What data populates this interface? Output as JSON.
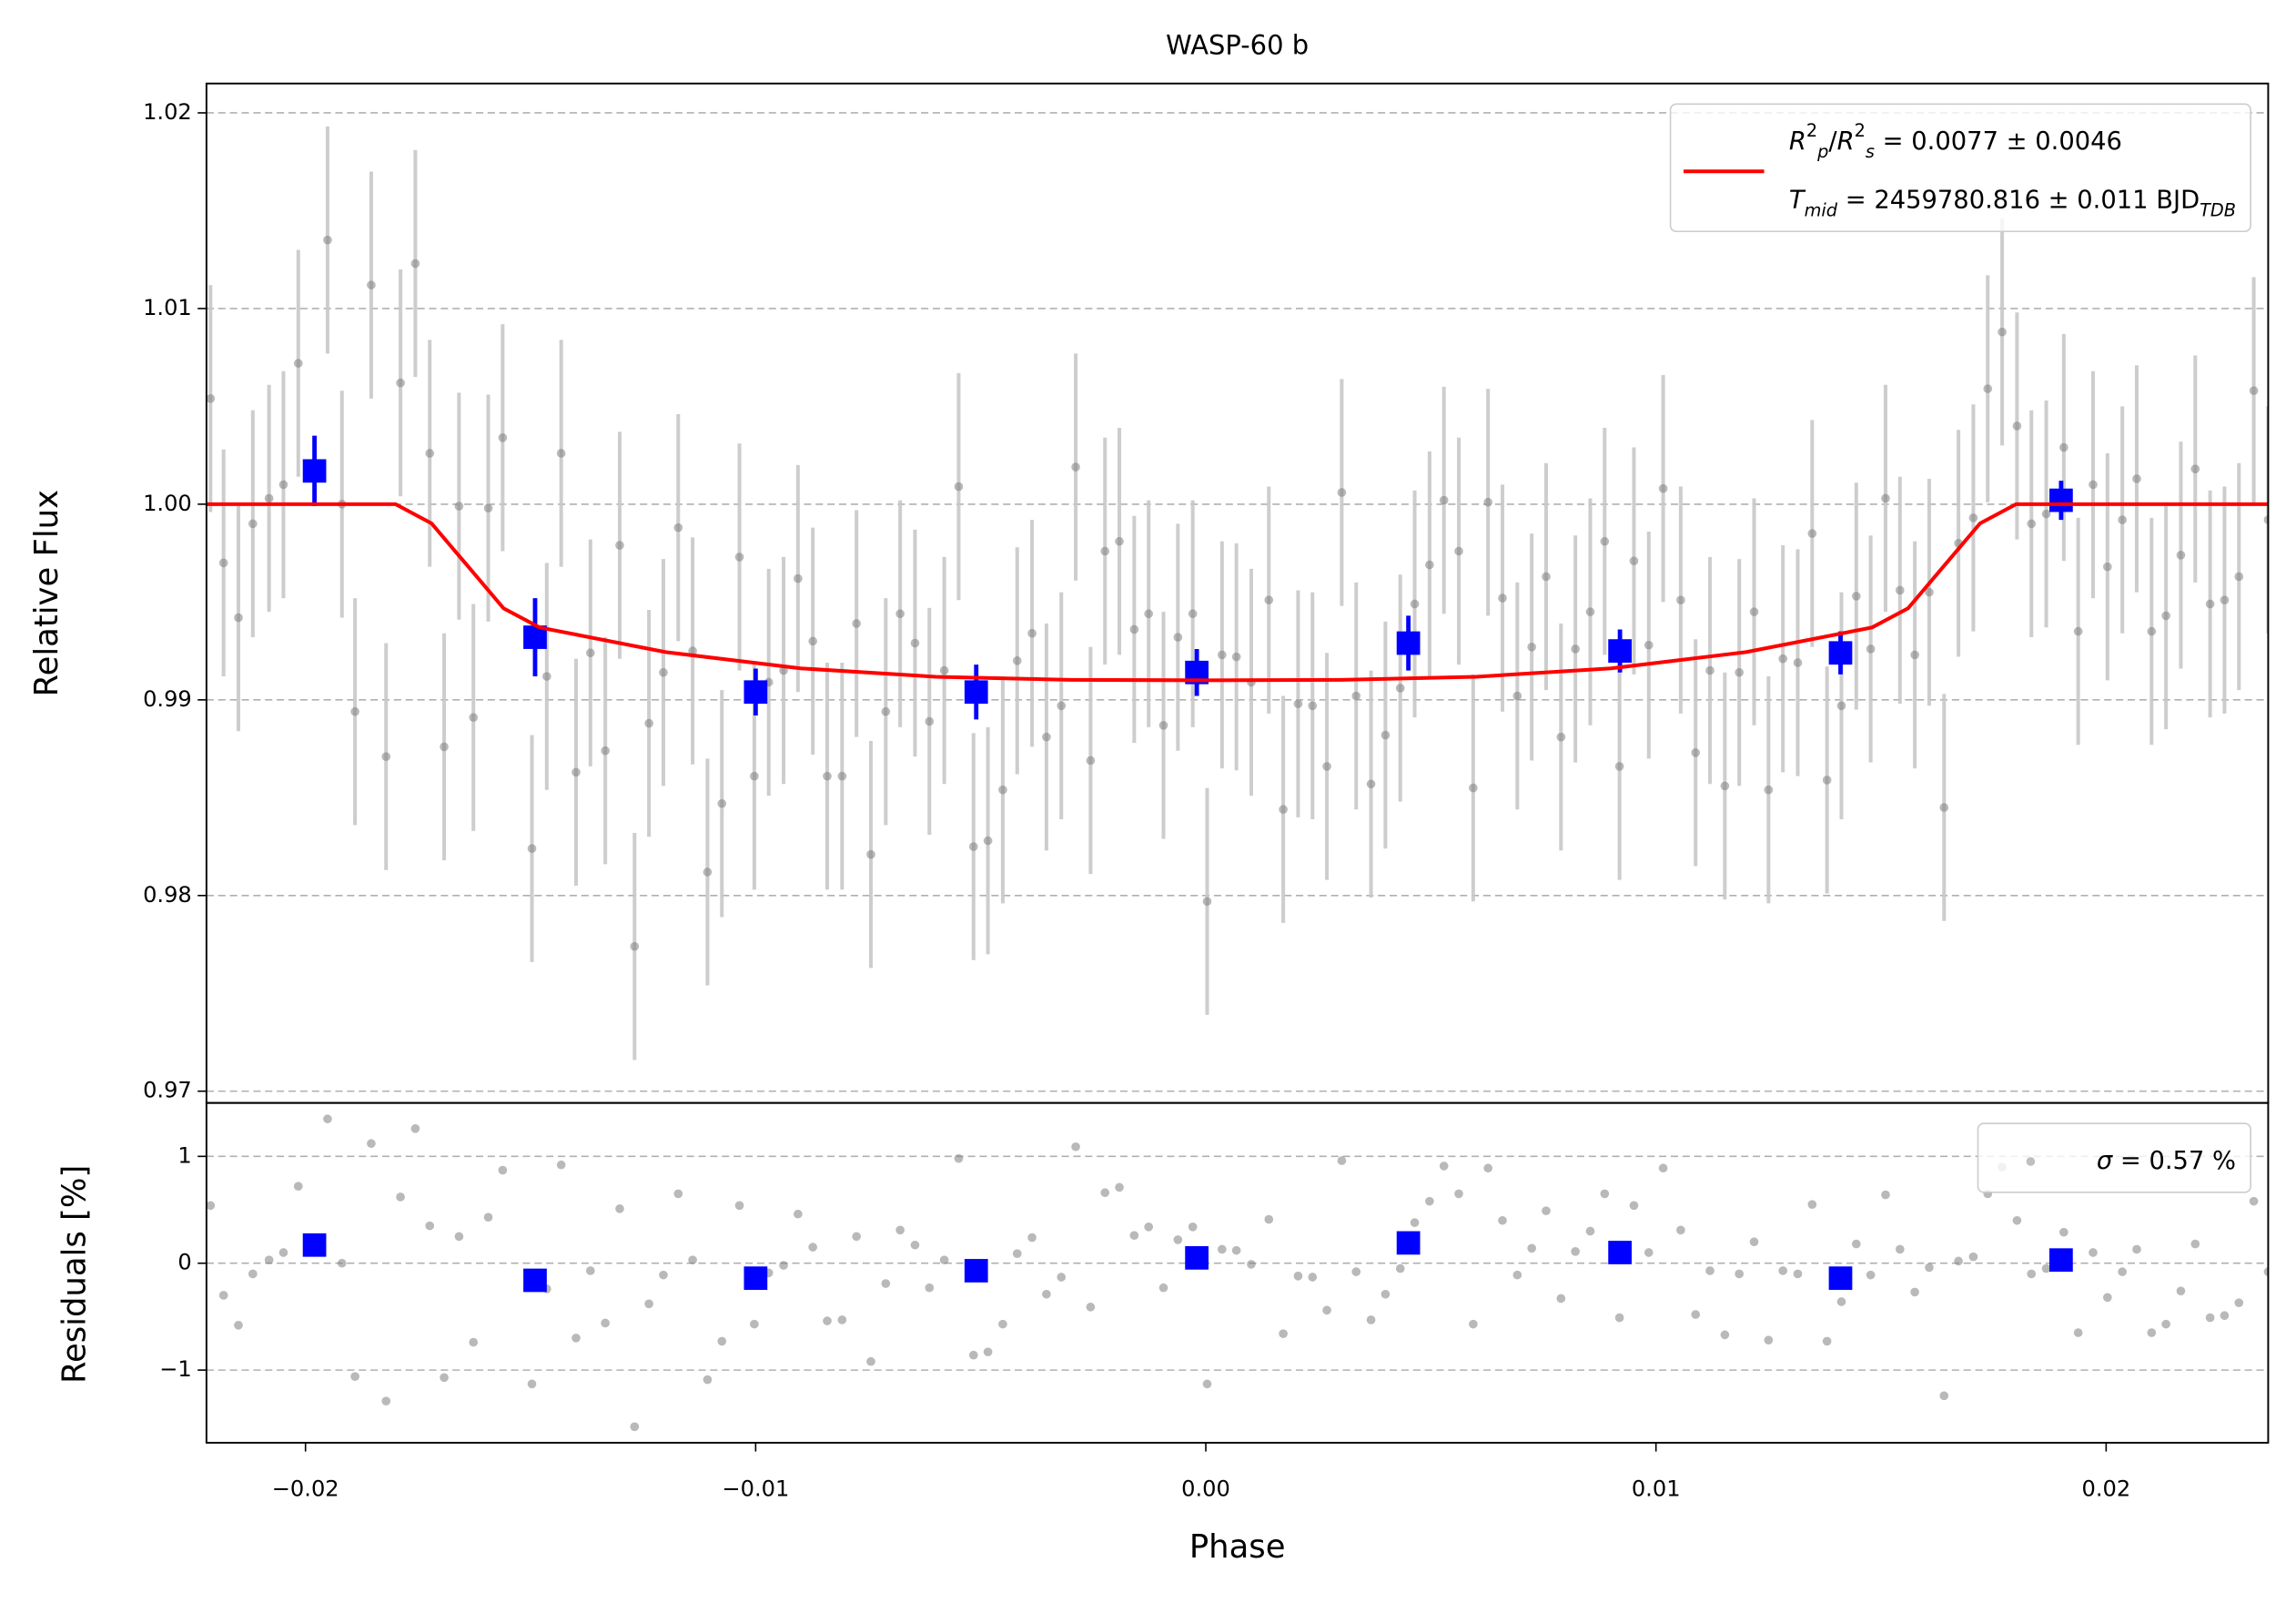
{
  "chart_data": [
    {
      "type": "scatter",
      "title": "WASP-60 b",
      "ylabel": "Relative Flux",
      "xlim": [
        -0.0222,
        0.0236
      ],
      "ylim": [
        0.9694,
        1.0215
      ],
      "yticks": [
        0.97,
        0.98,
        0.99,
        {
          "value": 1.0,
          "label": "1.00"
        },
        1.01,
        1.02
      ],
      "grid": true,
      "legend": "upper right",
      "series": [
        {
          "type": "errorbar",
          "marker": "circle",
          "color": "#808080",
          "error_color": "#c8c8c8",
          "error": 0.0058,
          "x": [
            -0.02211,
            -0.02182,
            -0.02149,
            -0.02117,
            -0.02081,
            -0.02049,
            -0.02016,
            -0.01951,
            -0.01919,
            -0.0189,
            -0.01854,
            -0.01821,
            -0.01789,
            -0.01756,
            -0.01724,
            -0.01692,
            -0.01659,
            -0.01627,
            -0.01594,
            -0.01562,
            -0.01497,
            -0.01464,
            -0.01432,
            -0.01399,
            -0.01367,
            -0.01334,
            -0.01302,
            -0.01269,
            -0.01237,
            -0.01205,
            -0.01172,
            -0.0114,
            -0.01107,
            -0.01075,
            -0.01036,
            -0.01003,
            -0.00971,
            -0.00938,
            -0.00906,
            -0.00873,
            -0.00841,
            -0.00808,
            -0.00776,
            -0.00744,
            -0.00711,
            -0.00679,
            -0.00646,
            -0.00614,
            -0.00581,
            -0.00549,
            -0.00516,
            -0.00484,
            -0.00451,
            -0.00419,
            -0.00386,
            -0.00354,
            -0.00321,
            -0.00289,
            -0.00256,
            -0.00224,
            -0.00192,
            -0.00159,
            -0.00127,
            -0.00094,
            -0.00062,
            -0.00029,
            3e-05,
            0.00036,
            0.00068,
            0.00101,
            0.0014,
            0.00172,
            0.00205,
            0.00237,
            0.00269,
            0.00302,
            0.00334,
            0.00367,
            0.00399,
            0.00432,
            0.00464,
            0.00497,
            0.00529,
            0.00562,
            0.00594,
            0.00627,
            0.00659,
            0.00692,
            0.00724,
            0.00756,
            0.00789,
            0.00821,
            0.00854,
            0.00886,
            0.00919,
            0.00951,
            0.00984,
            0.01016,
            0.01055,
            0.01088,
            0.0112,
            0.01153,
            0.01185,
            0.01218,
            0.0125,
            0.01282,
            0.01315,
            0.01347,
            0.0138,
            0.01412,
            0.01445,
            0.01477,
            0.0151,
            0.01542,
            0.01575,
            0.01607,
            0.0164,
            0.01672,
            0.01705,
            0.01737,
            0.01769,
            0.01802,
            0.01834,
            0.01867,
            0.01906,
            0.01938,
            0.01971,
            0.02003,
            0.02036,
            0.02068,
            0.02101,
            0.02133,
            0.02166,
            0.02198,
            0.02231,
            0.02263,
            0.02295,
            0.02328,
            0.0236
          ],
          "values": [
            1.0054,
            0.997,
            0.9942,
            0.999,
            1.0003,
            1.001,
            1.0072,
            1.0135,
            1.0,
            0.9894,
            1.0112,
            0.9871,
            1.0062,
            1.0123,
            1.0026,
            0.9876,
            0.9999,
            0.9891,
            0.9998,
            1.0034,
            0.9824,
            0.9912,
            1.0026,
            0.9863,
            0.9924,
            0.9874,
            0.9979,
            0.9774,
            0.9888,
            0.9914,
            0.9988,
            0.9925,
            0.9812,
            0.9847,
            0.9973,
            0.9861,
            0.9909,
            0.9915,
            0.9962,
            0.993,
            0.9861,
            0.9861,
            0.9939,
            0.9821,
            0.9894,
            0.9944,
            0.9929,
            0.9889,
            0.9915,
            1.0009,
            0.9825,
            0.9828,
            0.9854,
            0.992,
            0.9934,
            0.9881,
            0.9897,
            1.0019,
            0.9869,
            0.9976,
            0.9981,
            0.9936,
            0.9944,
            0.9887,
            0.9932,
            0.9944,
            0.9797,
            0.9923,
            0.9922,
            0.9909,
            0.9951,
            0.9844,
            0.9898,
            0.9897,
            0.9866,
            1.0006,
            0.9902,
            0.9857,
            0.9882,
            0.9906,
            0.9949,
            0.9969,
            1.0002,
            0.9976,
            0.9855,
            1.0001,
            0.9952,
            0.9902,
            0.9927,
            0.9963,
            0.9881,
            0.9926,
            0.9945,
            0.9981,
            0.9866,
            0.9971,
            0.9928,
            1.0008,
            0.9951,
            0.9873,
            0.9915,
            0.9856,
            0.9914,
            0.9945,
            0.9854,
            0.9921,
            0.9919,
            0.9985,
            0.9859,
            0.9897,
            0.9953,
            0.9926,
            1.0003,
            0.9956,
            0.9923,
            0.9955,
            0.9845,
            0.998,
            0.9993,
            1.0059,
            1.0088,
            1.004,
            0.999,
            0.9995,
            1.0029,
            0.9935,
            1.001,
            0.9968,
            0.9992,
            1.0013,
            0.9935,
            0.9943,
            0.9974,
            1.0018,
            0.9949,
            0.9951,
            0.9963,
            1.0058,
            0.9992
          ]
        },
        {
          "type": "errorbar",
          "marker": "square",
          "color": "#0000ff",
          "error_color": "#0000ff",
          "x": [
            -0.0198,
            -0.0149,
            -0.01,
            -0.0051,
            -0.0002,
            0.0045,
            0.0092,
            0.0141,
            0.019
          ],
          "values": [
            1.0017,
            0.9932,
            0.9904,
            0.9904,
            0.9914,
            0.9929,
            0.9925,
            0.9924,
            1.0002
          ],
          "errors": [
            0.0018,
            0.002,
            0.0012,
            0.0014,
            0.0012,
            0.0014,
            0.0011,
            0.0011,
            0.001
          ]
        },
        {
          "type": "line",
          "color": "#ff0000",
          "x": [
            -0.0222,
            -0.018,
            -0.0172,
            -0.0164,
            -0.0156,
            -0.0148,
            -0.012,
            -0.009,
            -0.006,
            -0.003,
            0.0,
            0.003,
            0.006,
            0.009,
            0.012,
            0.0148,
            0.0156,
            0.0164,
            0.0172,
            0.018,
            0.0236
          ],
          "values": [
            1.0,
            1.0,
            0.99902,
            0.99685,
            0.99468,
            0.9937,
            0.99244,
            0.99161,
            0.99118,
            0.99102,
            0.991,
            0.99102,
            0.99118,
            0.99161,
            0.99244,
            0.9937,
            0.99468,
            0.99685,
            0.99902,
            1.0,
            1.0
          ],
          "label_lines": [
            [
              {
                "text": "R",
                "style": "italic"
              },
              {
                "text": "2",
                "style": "sup"
              },
              {
                "text": "p",
                "style": "italic-sub"
              },
              {
                "text": "/"
              },
              {
                "text": "R",
                "style": "italic"
              },
              {
                "text": "2",
                "style": "sup"
              },
              {
                "text": "s",
                "style": "italic-sub"
              },
              {
                "text": " = 0.0077 ± 0.0046"
              }
            ],
            [
              {
                "text": "T",
                "style": "italic"
              },
              {
                "text": "mid",
                "style": "italic-sub"
              },
              {
                "text": " = 2459780.816 ± 0.011 BJD"
              },
              {
                "text": "TDB",
                "style": "italic-sub"
              }
            ]
          ]
        }
      ]
    },
    {
      "type": "scatter",
      "xlabel": "Phase",
      "ylabel": "Residuals [%]",
      "xlim": [
        -0.0222,
        0.0236
      ],
      "ylim": [
        -1.68,
        1.5
      ],
      "xticks": [
        {
          "value": -0.02,
          "label": "−0.02"
        },
        {
          "value": -0.01,
          "label": "−0.01"
        },
        {
          "value": 0,
          "label": "0.00"
        },
        {
          "value": 0.01,
          "label": "0.01"
        },
        {
          "value": 0.02,
          "label": "0.02"
        }
      ],
      "yticks": [
        {
          "value": -1,
          "label": "−1"
        },
        0,
        1
      ],
      "grid": true,
      "legend": "upper right",
      "series": [
        {
          "type": "errorbar",
          "marker": "circle",
          "color": "#808080",
          "x": [
            -0.02211,
            -0.02182,
            -0.02149,
            -0.02117,
            -0.02081,
            -0.02049,
            -0.02016,
            -0.01951,
            -0.01919,
            -0.0189,
            -0.01854,
            -0.01821,
            -0.01789,
            -0.01756,
            -0.01724,
            -0.01692,
            -0.01659,
            -0.01627,
            -0.01594,
            -0.01562,
            -0.01497,
            -0.01464,
            -0.01432,
            -0.01399,
            -0.01367,
            -0.01334,
            -0.01302,
            -0.01269,
            -0.01237,
            -0.01205,
            -0.01172,
            -0.0114,
            -0.01107,
            -0.01075,
            -0.01036,
            -0.01003,
            -0.00971,
            -0.00938,
            -0.00906,
            -0.00873,
            -0.00841,
            -0.00808,
            -0.00776,
            -0.00744,
            -0.00711,
            -0.00679,
            -0.00646,
            -0.00614,
            -0.00581,
            -0.00549,
            -0.00516,
            -0.00484,
            -0.00451,
            -0.00419,
            -0.00386,
            -0.00354,
            -0.00321,
            -0.00289,
            -0.00256,
            -0.00224,
            -0.00192,
            -0.00159,
            -0.00127,
            -0.00094,
            -0.00062,
            -0.00029,
            3e-05,
            0.00036,
            0.00068,
            0.00101,
            0.0014,
            0.00172,
            0.00205,
            0.00237,
            0.00269,
            0.00302,
            0.00334,
            0.00367,
            0.00399,
            0.00432,
            0.00464,
            0.00497,
            0.00529,
            0.00562,
            0.00594,
            0.00627,
            0.00659,
            0.00692,
            0.00724,
            0.00756,
            0.00789,
            0.00821,
            0.00854,
            0.00886,
            0.00919,
            0.00951,
            0.00984,
            0.01016,
            0.01055,
            0.01088,
            0.0112,
            0.01153,
            0.01185,
            0.01218,
            0.0125,
            0.01282,
            0.01315,
            0.01347,
            0.0138,
            0.01412,
            0.01445,
            0.01477,
            0.0151,
            0.01542,
            0.01575,
            0.01607,
            0.0164,
            0.01672,
            0.01705,
            0.01737,
            0.01769,
            0.01802,
            0.01834,
            0.01867,
            0.01906,
            0.01938,
            0.01971,
            0.02003,
            0.02036,
            0.02068,
            0.02101,
            0.02133,
            0.02166,
            0.02198,
            0.02231,
            0.02263,
            0.02295,
            0.02328,
            0.0236
          ],
          "values": [
            0.54,
            -0.3,
            -0.58,
            -0.1,
            0.03,
            0.1,
            0.72,
            1.35,
            0,
            -1.06,
            1.12,
            -1.29,
            0.62,
            1.26,
            0.35,
            -1.07,
            0.25,
            -0.74,
            0.43,
            0.87,
            -1.13,
            -0.24,
            0.92,
            -0.7,
            -0.07,
            -0.56,
            0.51,
            -1.53,
            -0.38,
            -0.11,
            0.65,
            0.03,
            -1.09,
            -0.73,
            0.54,
            -0.57,
            -0.09,
            -0.02,
            0.46,
            0.15,
            -0.54,
            -0.53,
            0.25,
            -0.92,
            -0.19,
            0.31,
            0.17,
            -0.23,
            0.03,
            0.98,
            -0.86,
            -0.83,
            -0.57,
            0.09,
            0.24,
            -0.29,
            -0.13,
            1.09,
            -0.41,
            0.66,
            0.71,
            0.26,
            0.34,
            -0.23,
            0.22,
            0.34,
            -1.13,
            0.13,
            0.12,
            -0.01,
            0.41,
            -0.66,
            -0.12,
            -0.13,
            -0.44,
            0.96,
            -0.08,
            -0.53,
            -0.29,
            -0.05,
            0.38,
            0.58,
            0.91,
            0.65,
            -0.57,
            0.89,
            0.4,
            -0.11,
            0.14,
            0.49,
            -0.33,
            0.11,
            0.3,
            0.65,
            -0.51,
            0.54,
            0.1,
            0.89,
            0.31,
            -0.48,
            -0.07,
            -0.67,
            -0.1,
            0.2,
            -0.72,
            -0.07,
            -0.1,
            0.55,
            -0.73,
            -0.36,
            0.18,
            -0.11,
            0.64,
            0.13,
            -0.27,
            -0.04,
            -1.24,
            0.02,
            0.06,
            0.65,
            0.9,
            0.4,
            -0.1,
            -0.05,
            0.29,
            -0.65,
            0.1,
            -0.32,
            -0.08,
            0.13,
            -0.65,
            -0.57,
            -0.26,
            0.18,
            -0.51,
            -0.49,
            -0.37,
            0.58,
            -0.08
          ],
          "label_lines": [
            [
              {
                "text": "σ",
                "style": "italic"
              },
              {
                "text": " = 0.57 %"
              }
            ]
          ]
        },
        {
          "type": "errorbar",
          "marker": "square",
          "color": "#0000ff",
          "x": [
            -0.0198,
            -0.0149,
            -0.01,
            -0.0051,
            -0.0002,
            0.0045,
            0.0092,
            0.0141,
            0.019
          ],
          "values": [
            0.17,
            -0.16,
            -0.14,
            -0.07,
            0.05,
            0.19,
            0.1,
            -0.14,
            0.03
          ]
        }
      ]
    }
  ]
}
